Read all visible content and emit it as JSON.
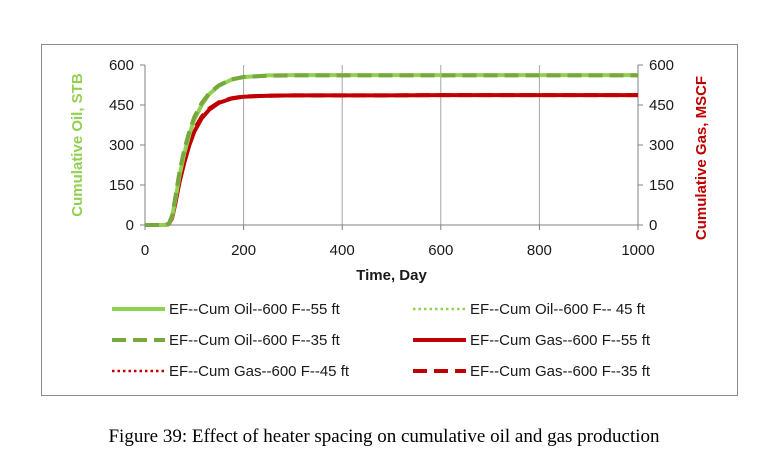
{
  "caption": "Figure 39: Effect of heater spacing on cumulative oil and gas production",
  "chart_data": {
    "type": "line",
    "title": "",
    "xlabel": "Time, Day",
    "ylabel_left": "Cumulative Oil, STB",
    "ylabel_right": "Cumulative Gas, MSCF",
    "xlim": [
      0,
      1000
    ],
    "ylim_left": [
      0,
      600
    ],
    "ylim_right": [
      0,
      600
    ],
    "x_ticks": [
      0,
      200,
      400,
      600,
      800,
      1000
    ],
    "y_ticks_left": [
      0,
      150,
      300,
      450,
      600
    ],
    "y_ticks_right": [
      0,
      150,
      300,
      450,
      600
    ],
    "grid": "vertical",
    "legend_position": "bottom",
    "colors": {
      "oil_light": "#92d050",
      "oil_dark": "#77a83f",
      "gas": "#c00000",
      "left_axis_title": "#92d050",
      "right_axis_title": "#c00000",
      "grid": "#a6a6a6"
    },
    "series": [
      {
        "name": "EF--Cum Oil--600 F--55 ft",
        "axis": "left",
        "style": "solid",
        "color": "#92d050",
        "x": [
          0,
          40,
          48,
          55,
          62,
          70,
          80,
          90,
          100,
          115,
          130,
          150,
          175,
          200,
          250,
          300,
          400,
          500,
          600,
          700,
          800,
          900,
          1000
        ],
        "values": [
          0,
          0,
          3,
          30,
          100,
          185,
          270,
          340,
          395,
          450,
          490,
          522,
          545,
          555,
          561,
          562,
          562,
          562,
          562,
          562,
          562,
          562,
          562
        ]
      },
      {
        "name": "EF--Cum Oil--600 F-- 45 ft",
        "axis": "left",
        "style": "dotted",
        "color": "#92d050",
        "x": [
          0,
          40,
          48,
          55,
          62,
          70,
          80,
          90,
          100,
          115,
          130,
          150,
          175,
          200,
          250,
          300,
          400,
          500,
          600,
          700,
          800,
          900,
          1000
        ],
        "values": [
          0,
          0,
          3,
          28,
          96,
          180,
          265,
          335,
          390,
          446,
          487,
          520,
          543,
          554,
          560,
          561,
          561,
          561,
          561,
          561,
          561,
          561,
          561
        ]
      },
      {
        "name": "EF--Cum Oil--600 F--35 ft",
        "axis": "left",
        "style": "dashed",
        "color": "#77a83f",
        "x": [
          0,
          40,
          48,
          55,
          62,
          70,
          80,
          90,
          100,
          115,
          130,
          150,
          175,
          200,
          250,
          300,
          400,
          500,
          600,
          700,
          800,
          900,
          1000
        ],
        "values": [
          0,
          0,
          4,
          35,
          110,
          200,
          285,
          352,
          405,
          457,
          494,
          524,
          546,
          555,
          560,
          561,
          561,
          561,
          561,
          561,
          561,
          561,
          561
        ]
      },
      {
        "name": "EF--Cum Gas--600 F--55 ft",
        "axis": "right",
        "style": "solid",
        "color": "#c00000",
        "x": [
          0,
          40,
          48,
          55,
          62,
          70,
          80,
          90,
          100,
          115,
          130,
          150,
          175,
          200,
          250,
          300,
          400,
          500,
          600,
          700,
          800,
          900,
          1000
        ],
        "values": [
          0,
          0,
          3,
          25,
          85,
          160,
          235,
          300,
          350,
          400,
          432,
          458,
          474,
          481,
          485,
          486,
          486,
          486,
          487,
          487,
          487,
          487,
          487
        ]
      },
      {
        "name": "EF--Cum Gas--600 F--45 ft",
        "axis": "right",
        "style": "dotted",
        "color": "#c00000",
        "x": [
          0,
          40,
          48,
          55,
          62,
          70,
          80,
          90,
          100,
          115,
          130,
          150,
          175,
          200,
          250,
          300,
          400,
          500,
          600,
          700,
          800,
          900,
          1000
        ],
        "values": [
          0,
          0,
          3,
          24,
          82,
          156,
          230,
          296,
          347,
          398,
          430,
          457,
          473,
          480,
          484,
          485,
          485,
          485,
          486,
          486,
          486,
          486,
          486
        ]
      },
      {
        "name": "EF--Cum Gas--600 F--35 ft",
        "axis": "right",
        "style": "dashed",
        "color": "#c00000",
        "x": [
          0,
          40,
          48,
          55,
          62,
          70,
          80,
          90,
          100,
          115,
          130,
          150,
          175,
          200,
          250,
          300,
          400,
          500,
          600,
          700,
          800,
          900,
          1000
        ],
        "values": [
          0,
          0,
          4,
          28,
          92,
          170,
          245,
          310,
          358,
          406,
          436,
          460,
          475,
          482,
          485,
          486,
          486,
          486,
          487,
          487,
          487,
          487,
          487
        ]
      }
    ]
  }
}
